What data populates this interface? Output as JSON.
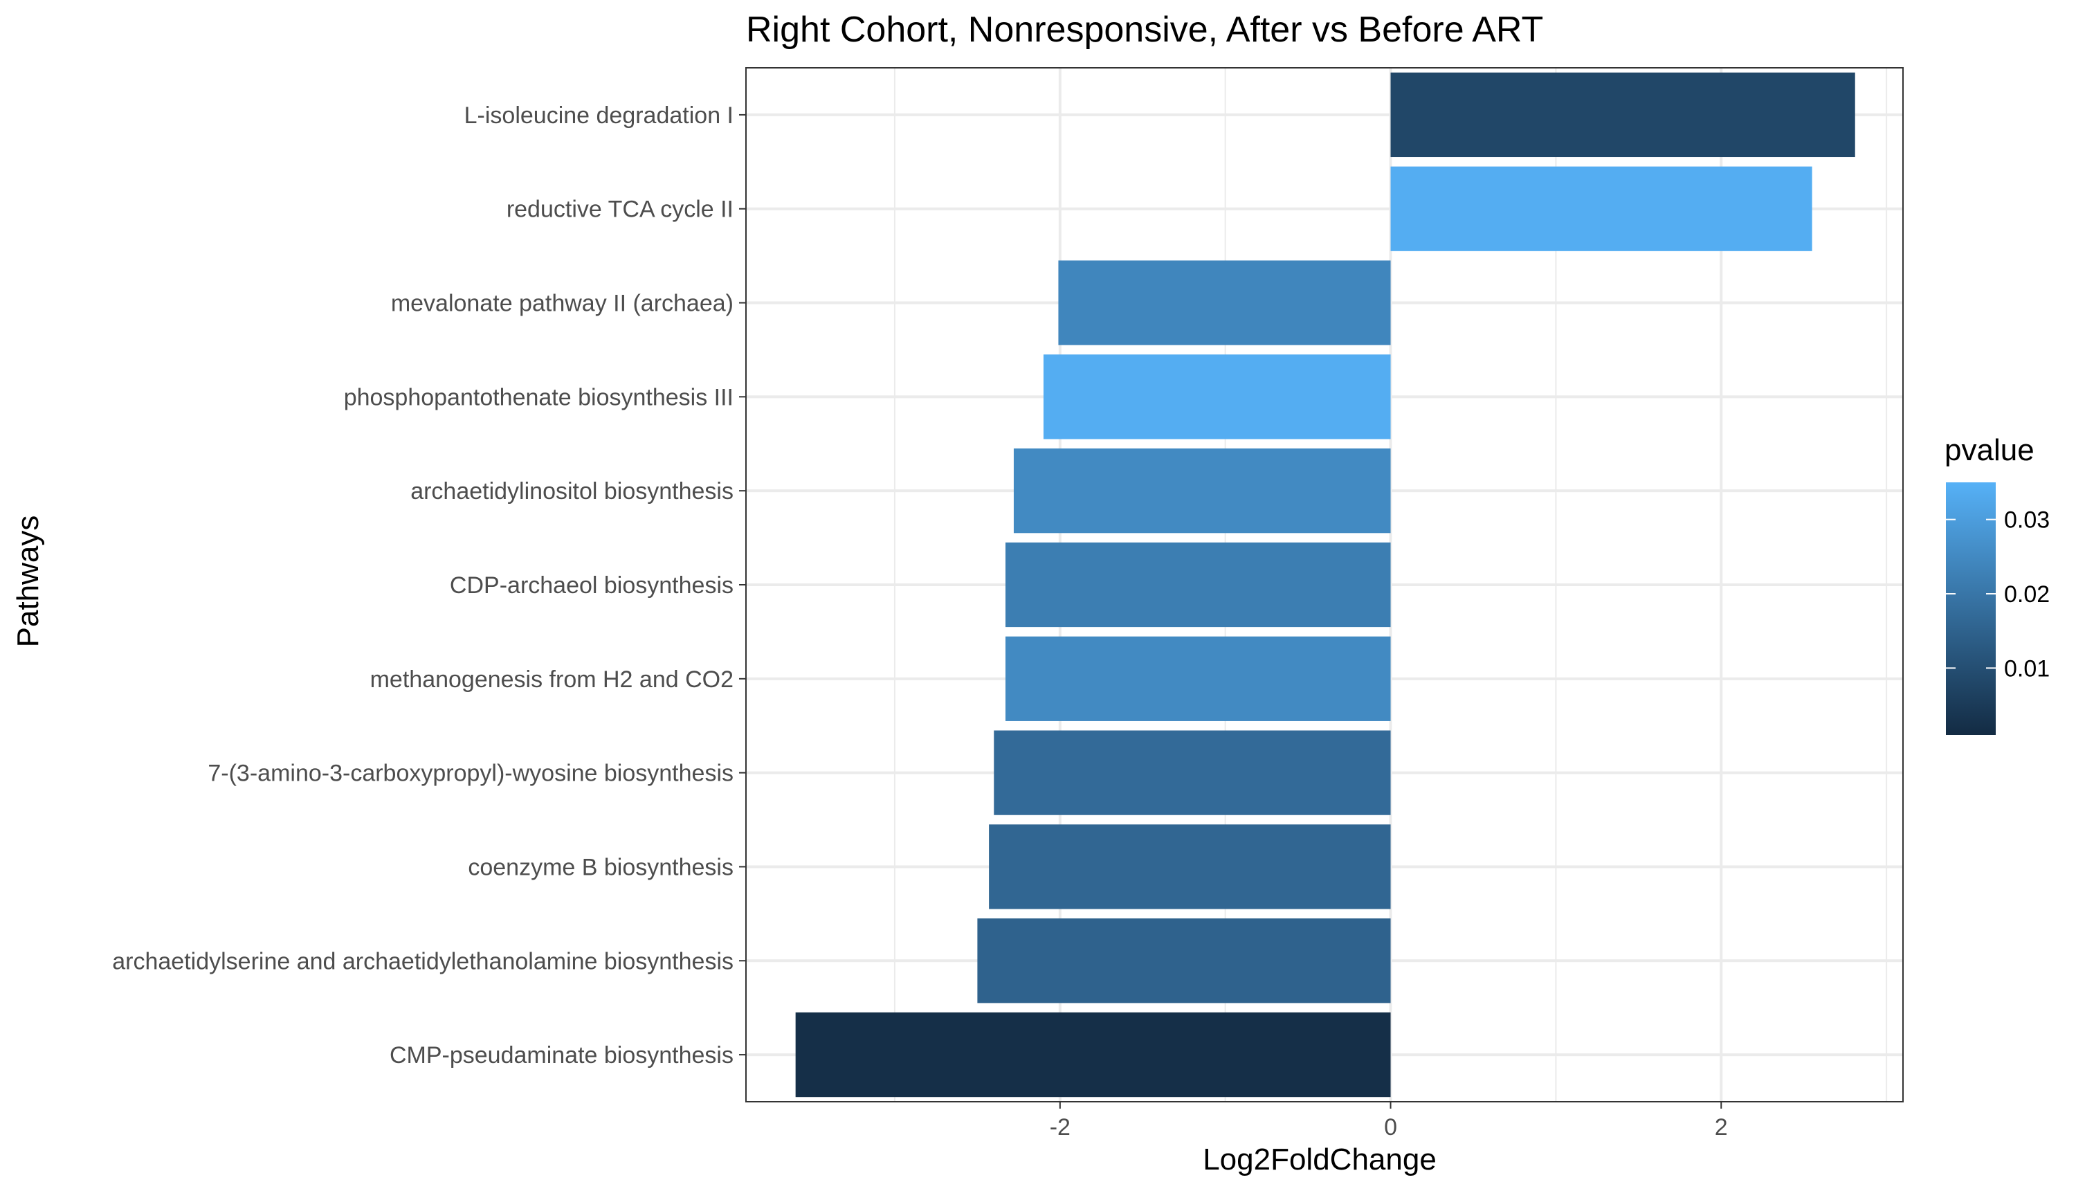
{
  "chart_data": {
    "type": "bar",
    "orientation": "horizontal",
    "title": "Right Cohort, Nonresponsive, After vs Before ART",
    "xlabel": "Log2FoldChange",
    "ylabel": "Pathways",
    "categories": [
      "L-isoleucine degradation I",
      "reductive TCA cycle II",
      "mevalonate pathway II (archaea)",
      "phosphopantothenate biosynthesis III",
      "archaetidylinositol biosynthesis",
      "CDP-archaeol biosynthesis",
      "methanogenesis from H2 and CO2",
      "7-(3-amino-3-carboxypropyl)-wyosine biosynthesis",
      "coenzyme B biosynthesis",
      "archaetidylserine and archaetidylethanolamine biosynthesis",
      "CMP-pseudaminate biosynthesis"
    ],
    "values": [
      2.81,
      2.55,
      -2.01,
      -2.1,
      -2.28,
      -2.33,
      -2.33,
      -2.4,
      -2.43,
      -2.5,
      -3.6
    ],
    "pvalues": [
      0.008,
      0.034,
      0.024,
      0.034,
      0.025,
      0.022,
      0.025,
      0.017,
      0.016,
      0.015,
      0.002
    ],
    "xlim": [
      -3.9,
      3.1
    ],
    "xticks": [
      -2,
      0,
      2
    ],
    "xtick_labels": [
      "-2",
      "0",
      "2"
    ],
    "grid": true,
    "legend": {
      "title": "pvalue",
      "placement": "right",
      "range": [
        0.001,
        0.035
      ],
      "ticks": [
        0.01,
        0.02,
        0.03
      ],
      "tick_labels": [
        "0.01",
        "0.02",
        "0.03"
      ],
      "low_color": "#132B43",
      "high_color": "#56B1F7"
    }
  }
}
